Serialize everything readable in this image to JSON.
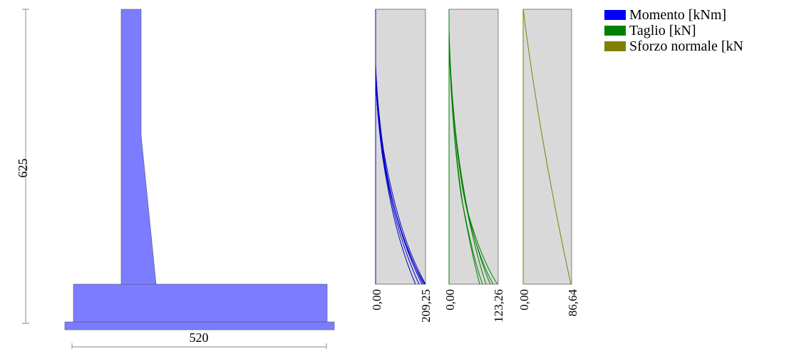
{
  "wall": {
    "height_label": "625",
    "width_label": "520",
    "fill_color": "#7b7cff"
  },
  "diagrams": [
    {
      "key": "moment",
      "color": "#0000cc",
      "min_label": "0,00",
      "max_label": "209,25"
    },
    {
      "key": "shear",
      "color": "#008000",
      "min_label": "0,00",
      "max_label": "123,26"
    },
    {
      "key": "normal",
      "color": "#808000",
      "min_label": "0,00",
      "max_label": "86,64"
    }
  ],
  "legend": [
    {
      "label": "Momento [kNm]",
      "color": "#0000ff"
    },
    {
      "label": "Taglio [kN]",
      "color": "#008000"
    },
    {
      "label": "Sforzo normale [kN",
      "color": "#808000"
    }
  ]
}
